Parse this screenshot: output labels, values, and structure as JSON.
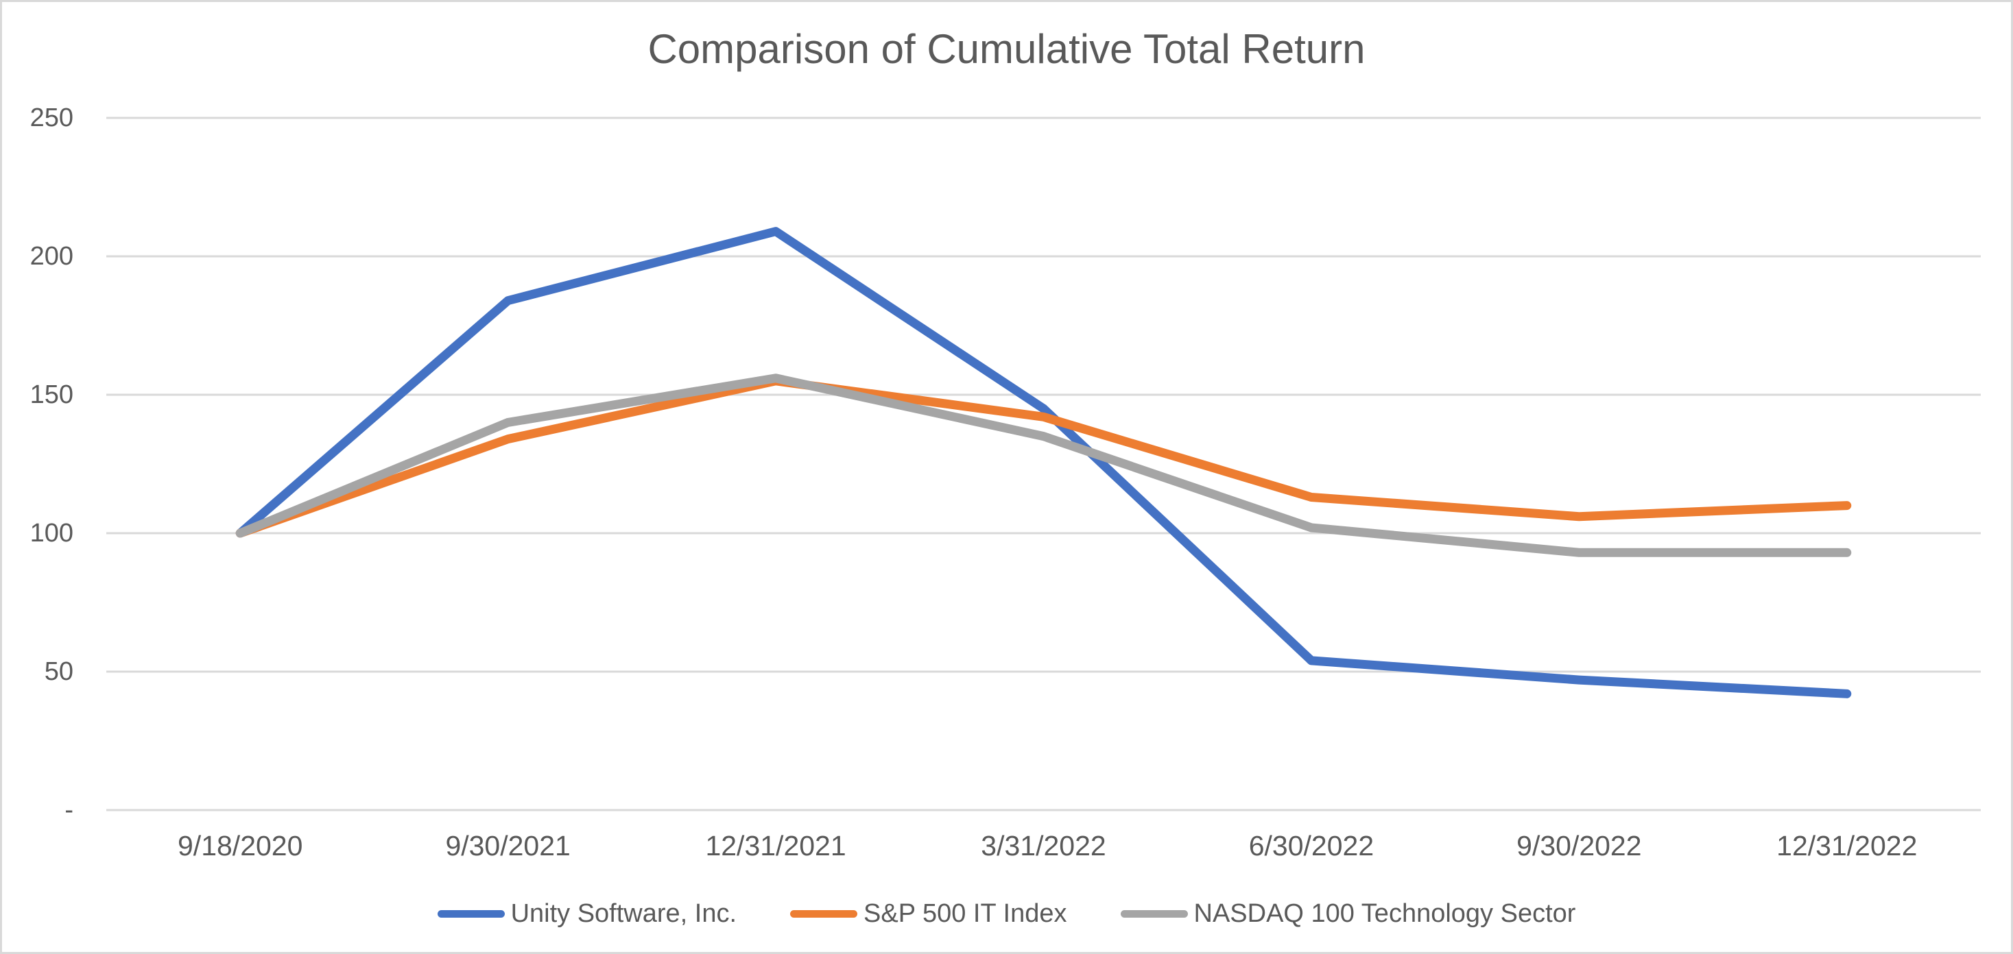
{
  "chart_data": {
    "type": "line",
    "title": "Comparison of Cumulative Total Return",
    "categories": [
      "9/18/2020",
      "9/30/2021",
      "12/31/2021",
      "3/31/2022",
      "6/30/2022",
      "9/30/2022",
      "12/31/2022"
    ],
    "series": [
      {
        "name": "Unity Software, Inc.",
        "color": "#4472C4",
        "values": [
          100,
          184,
          209,
          145,
          54,
          47,
          42
        ]
      },
      {
        "name": "S&P 500 IT Index",
        "color": "#ED7D31",
        "values": [
          100,
          134,
          155,
          142,
          113,
          106,
          110
        ]
      },
      {
        "name": "NASDAQ 100 Technology Sector",
        "color": "#A5A5A5",
        "values": [
          100,
          140,
          156,
          135,
          102,
          93,
          93
        ]
      }
    ],
    "xlabel": "",
    "ylabel": "",
    "ylim": [
      0,
      250
    ],
    "y_ticks": [
      {
        "value": 0,
        "label": "-"
      },
      {
        "value": 50,
        "label": "50"
      },
      {
        "value": 100,
        "label": "100"
      },
      {
        "value": 150,
        "label": "150"
      },
      {
        "value": 200,
        "label": "200"
      },
      {
        "value": 250,
        "label": "250"
      }
    ],
    "grid": "horizontal",
    "legend_position": "bottom",
    "colors": {
      "text": "#595959",
      "gridline": "#D9D9D9",
      "background": "#FFFFFF",
      "canvas_border": "#D9D9D9"
    }
  }
}
